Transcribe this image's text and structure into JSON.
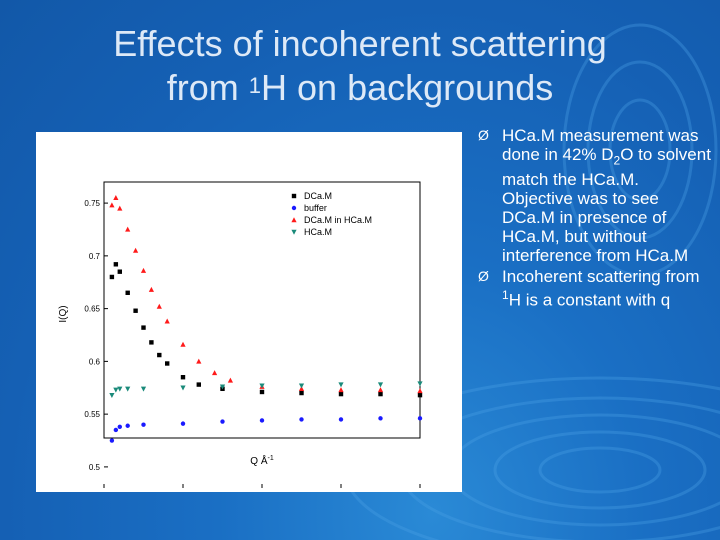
{
  "slide": {
    "title_line1": "Effects of incoherent scattering",
    "title_line2_pre": "from ",
    "title_line2_sup": "1",
    "title_line2_post": "H on backgrounds"
  },
  "bullets": [
    {
      "marker": "Ø",
      "pre": "HCa.M measurement was done in 42% D",
      "sub": "2",
      "post": "O to solvent match the HCa.M. Objective was to see DCa.M in presence of HCa.M, but without interference from HCa.M"
    },
    {
      "marker": "Ø",
      "pre": "Incoherent scattering from ",
      "sup": "1",
      "post": "H is a constant with q"
    }
  ],
  "colors": {
    "DCaM": "#000000",
    "buffer": "#1a1aff",
    "DCaM_in_HCaM": "#ff1a1a",
    "HCaM": "#1a8a7a"
  },
  "chart_data": {
    "type": "scatter",
    "xlabel": "Q Å",
    "xlabel_sup": "-1",
    "ylabel": "I(Q)",
    "xlim": [
      0.0,
      0.4
    ],
    "ylim": [
      0.48,
      0.77
    ],
    "x_ticks": [
      "0.0",
      "0.1",
      "0.2",
      "0.3",
      "0.4"
    ],
    "y_ticks": [
      "0.5",
      "0.55",
      "0.6",
      "0.65",
      "0.7",
      "0.75"
    ],
    "legend_position": "top-right",
    "series": [
      {
        "name": "DCa.M",
        "marker": "square",
        "color": "#000000",
        "points": [
          [
            0.01,
            0.68
          ],
          [
            0.015,
            0.692
          ],
          [
            0.02,
            0.685
          ],
          [
            0.03,
            0.665
          ],
          [
            0.04,
            0.648
          ],
          [
            0.05,
            0.632
          ],
          [
            0.06,
            0.618
          ],
          [
            0.07,
            0.606
          ],
          [
            0.08,
            0.598
          ],
          [
            0.1,
            0.585
          ],
          [
            0.12,
            0.578
          ],
          [
            0.15,
            0.574
          ],
          [
            0.2,
            0.571
          ],
          [
            0.25,
            0.57
          ],
          [
            0.3,
            0.569
          ],
          [
            0.35,
            0.569
          ],
          [
            0.4,
            0.568
          ]
        ]
      },
      {
        "name": "buffer",
        "marker": "circle",
        "color": "#1a1aff",
        "points": [
          [
            0.01,
            0.525
          ],
          [
            0.015,
            0.535
          ],
          [
            0.02,
            0.538
          ],
          [
            0.03,
            0.539
          ],
          [
            0.05,
            0.54
          ],
          [
            0.1,
            0.541
          ],
          [
            0.15,
            0.543
          ],
          [
            0.2,
            0.544
          ],
          [
            0.25,
            0.545
          ],
          [
            0.3,
            0.545
          ],
          [
            0.35,
            0.546
          ],
          [
            0.4,
            0.546
          ]
        ]
      },
      {
        "name": "DCa.M in HCa.M",
        "marker": "triangle-up",
        "color": "#ff1a1a",
        "points": [
          [
            0.01,
            0.748
          ],
          [
            0.015,
            0.755
          ],
          [
            0.02,
            0.745
          ],
          [
            0.03,
            0.725
          ],
          [
            0.04,
            0.705
          ],
          [
            0.05,
            0.686
          ],
          [
            0.06,
            0.668
          ],
          [
            0.07,
            0.652
          ],
          [
            0.08,
            0.638
          ],
          [
            0.1,
            0.616
          ],
          [
            0.12,
            0.6
          ],
          [
            0.14,
            0.589
          ],
          [
            0.16,
            0.582
          ],
          [
            0.2,
            0.576
          ],
          [
            0.25,
            0.574
          ],
          [
            0.3,
            0.573
          ],
          [
            0.35,
            0.573
          ],
          [
            0.4,
            0.572
          ]
        ]
      },
      {
        "name": "HCa.M",
        "marker": "triangle-down",
        "color": "#1a8a7a",
        "points": [
          [
            0.01,
            0.568
          ],
          [
            0.015,
            0.573
          ],
          [
            0.02,
            0.574
          ],
          [
            0.03,
            0.574
          ],
          [
            0.05,
            0.574
          ],
          [
            0.1,
            0.575
          ],
          [
            0.15,
            0.576
          ],
          [
            0.2,
            0.577
          ],
          [
            0.25,
            0.577
          ],
          [
            0.3,
            0.578
          ],
          [
            0.35,
            0.578
          ],
          [
            0.4,
            0.579
          ]
        ]
      }
    ]
  }
}
